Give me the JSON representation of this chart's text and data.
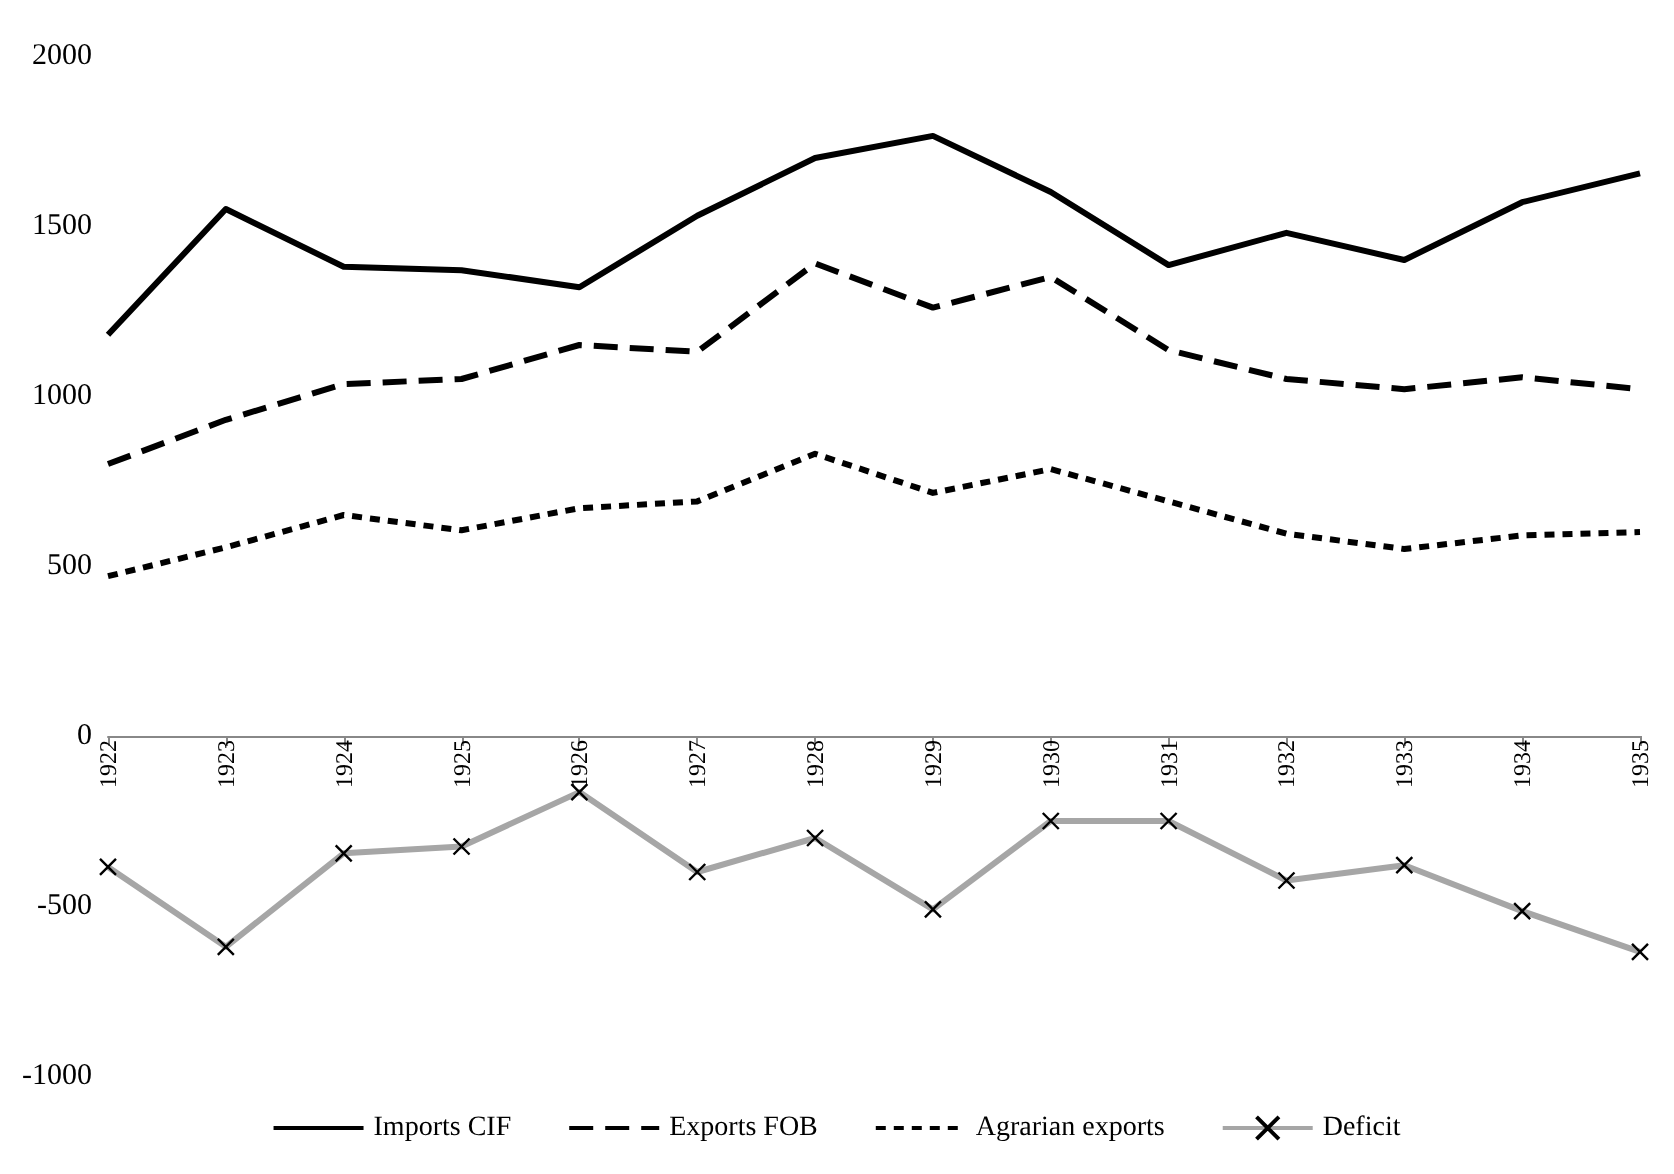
{
  "chart_data": {
    "type": "line",
    "categories": [
      "1922",
      "1923",
      "1924",
      "1925",
      "1926",
      "1927",
      "1928",
      "1929",
      "1930",
      "1931",
      "1932",
      "1933",
      "1934",
      "1935"
    ],
    "series": [
      {
        "name": "Imports CIF",
        "color": "#000000",
        "line_style": "solid",
        "marker": "none",
        "values": [
          1180,
          1550,
          1380,
          1370,
          1320,
          1530,
          1700,
          1765,
          1600,
          1385,
          1480,
          1400,
          1570,
          1655
        ]
      },
      {
        "name": "Exports FOB",
        "color": "#000000",
        "line_style": "dashed",
        "marker": "none",
        "values": [
          800,
          930,
          1035,
          1050,
          1150,
          1130,
          1390,
          1260,
          1350,
          1135,
          1050,
          1020,
          1055,
          1020
        ]
      },
      {
        "name": "Agrarian exports",
        "color": "#000000",
        "line_style": "dotted",
        "marker": "none",
        "values": [
          470,
          555,
          650,
          605,
          670,
          690,
          830,
          715,
          785,
          690,
          595,
          550,
          590,
          600
        ]
      },
      {
        "name": "Deficit",
        "color": "#a6a6a6",
        "line_style": "solid",
        "marker": "cross",
        "values": [
          -385,
          -620,
          -345,
          -325,
          -165,
          -400,
          -300,
          -510,
          -250,
          -250,
          -425,
          -380,
          -515,
          -635
        ]
      }
    ],
    "ylim": [
      -1000,
      2000
    ],
    "yticks": [
      -1000,
      -500,
      0,
      500,
      1000,
      1500,
      2000
    ],
    "grid": false,
    "legend": "bottom"
  }
}
